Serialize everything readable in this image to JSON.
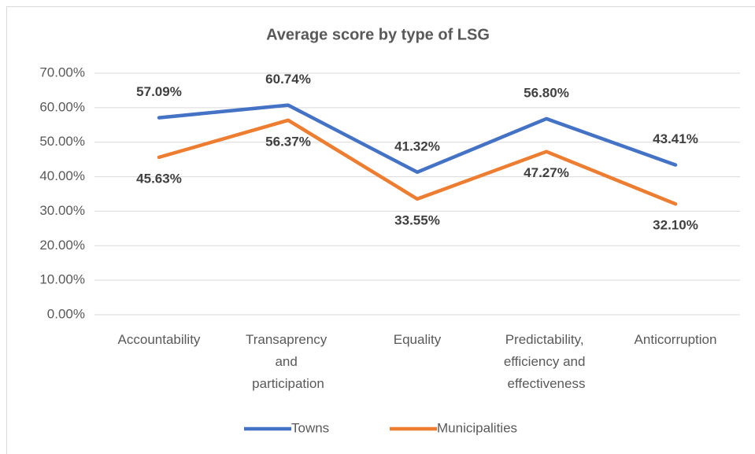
{
  "chart_data": {
    "type": "line",
    "title": "Average score by type of LSG",
    "categories": [
      "Accountability",
      "Transaprency and participation",
      "Equality",
      "Predictability, efficiency and effectiveness",
      "Anticorruption"
    ],
    "series": [
      {
        "name": "Towns",
        "color": "#4472c4",
        "values": [
          57.09,
          60.74,
          41.32,
          56.8,
          43.41
        ],
        "value_labels": [
          "57.09%",
          "60.74%",
          "41.32%",
          "56.80%",
          "43.41%"
        ]
      },
      {
        "name": "Municipalities",
        "color": "#ed7d31",
        "values": [
          45.63,
          56.37,
          33.55,
          47.27,
          32.1
        ],
        "value_labels": [
          "45.63%",
          "56.37%",
          "33.55%",
          "47.27%",
          "32.10%"
        ]
      }
    ],
    "ylim": [
      0,
      70
    ],
    "yticks": [
      {
        "value": 0,
        "label": "0.00%"
      },
      {
        "value": 10,
        "label": "10.00%"
      },
      {
        "value": 20,
        "label": "20.00%"
      },
      {
        "value": 30,
        "label": "30.00%"
      },
      {
        "value": 40,
        "label": "40.00%"
      },
      {
        "value": 50,
        "label": "50.00%"
      },
      {
        "value": 60,
        "label": "60.00%"
      },
      {
        "value": 70,
        "label": "70.00%"
      }
    ],
    "grid": true,
    "legend": "bottom"
  }
}
